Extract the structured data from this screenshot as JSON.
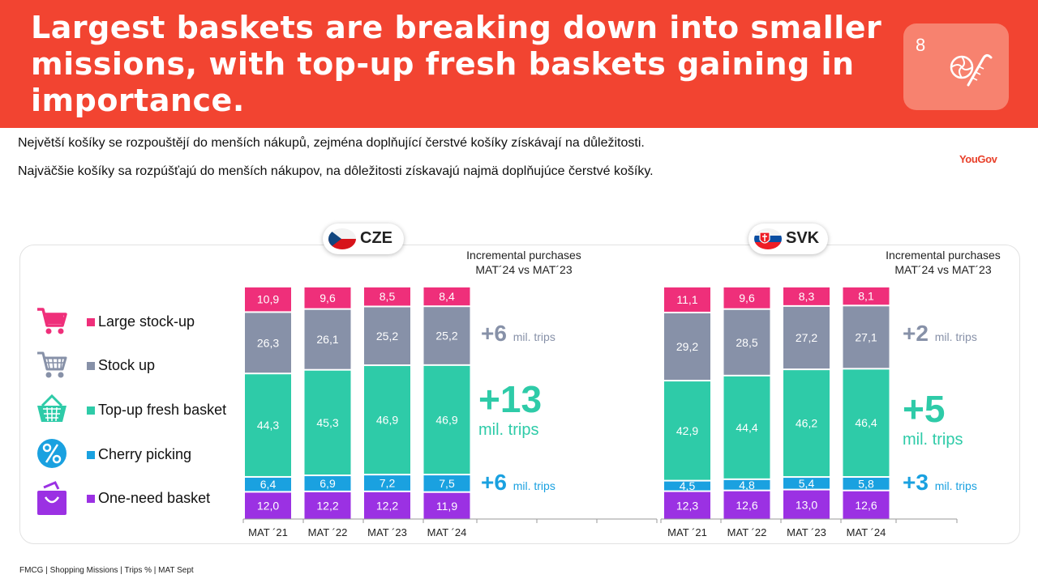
{
  "header": {
    "title": "Largest baskets are breaking down into smaller missions, with top-up fresh baskets gaining in importance.",
    "badge_number": "8",
    "badge_icon": "candy-icon"
  },
  "subtitles": {
    "cz": "Největší košíky se rozpouštějí do menších nákupů, zejména doplňující čerstvé košíky získávají na důležitosti.",
    "sk": "Najväčšie košíky sa rozpúšťajú do menších  nákupov, na dôležitosti získavajú najmä doplňujúce čerstvé košíky."
  },
  "logo": "YouGov",
  "legend": [
    {
      "label": "Large stock-up",
      "color": "#ef2f7a",
      "icon": "shopping-cart-icon"
    },
    {
      "label": "Stock up",
      "color": "#8791a8",
      "icon": "shopping-cart-icon"
    },
    {
      "label": "Top-up fresh basket",
      "color": "#2ecba8",
      "icon": "basket-icon"
    },
    {
      "label": "Cherry picking",
      "color": "#1aa1e0",
      "icon": "percent-icon"
    },
    {
      "label": "One-need basket",
      "color": "#9b31e3",
      "icon": "shopping-bag-icon"
    }
  ],
  "incremental_label": {
    "line1": "Incremental purchases",
    "line2": "MAT´24 vs MAT´23"
  },
  "countries": {
    "cze": {
      "name": "CZE",
      "deltas": {
        "large": {
          "value": "+6",
          "unit": "mil. trips"
        },
        "fresh": {
          "value": "+13",
          "unit": "mil. trips"
        },
        "cherry": {
          "value": "+6",
          "unit": "mil. trips"
        }
      }
    },
    "svk": {
      "name": "SVK",
      "deltas": {
        "large": {
          "value": "+2",
          "unit": "mil. trips"
        },
        "fresh": {
          "value": "+5",
          "unit": "mil. trips"
        },
        "cherry": {
          "value": "+3",
          "unit": "mil. trips"
        }
      }
    }
  },
  "chart_data": [
    {
      "type": "bar",
      "stacked": true,
      "country": "CZE",
      "categories": [
        "MAT ´21",
        "MAT ´22",
        "MAT ´23",
        "MAT ´24"
      ],
      "value_labels": [
        [
          "12,0",
          "12,2",
          "12,2",
          "11,9"
        ],
        [
          "6,4",
          "6,9",
          "7,2",
          "7,5"
        ],
        [
          "44,3",
          "45,3",
          "46,9",
          "46,9"
        ],
        [
          "26,3",
          "26,1",
          "25,2",
          "25,2"
        ],
        [
          "10,9",
          "9,6",
          "8,5",
          "8,4"
        ]
      ],
      "series": [
        {
          "name": "One-need basket",
          "values": [
            12.0,
            12.2,
            12.2,
            11.9
          ]
        },
        {
          "name": "Cherry picking",
          "values": [
            6.4,
            6.9,
            7.2,
            7.5
          ]
        },
        {
          "name": "Top-up fresh basket",
          "values": [
            44.3,
            45.3,
            46.9,
            46.9
          ]
        },
        {
          "name": "Stock up",
          "values": [
            26.3,
            26.1,
            25.2,
            25.2
          ]
        },
        {
          "name": "Large stock-up",
          "values": [
            10.9,
            9.6,
            8.5,
            8.4
          ]
        }
      ],
      "unit": "Trips %"
    },
    {
      "type": "bar",
      "stacked": true,
      "country": "SVK",
      "categories": [
        "MAT ´21",
        "MAT ´22",
        "MAT ´23",
        "MAT ´24"
      ],
      "value_labels": [
        [
          "12,3",
          "12,6",
          "13,0",
          "12,6"
        ],
        [
          "4,5",
          "4,8",
          "5,4",
          "5,8"
        ],
        [
          "42,9",
          "44,4",
          "46,2",
          "46,4"
        ],
        [
          "29,2",
          "28,5",
          "27,2",
          "27,1"
        ],
        [
          "11,1",
          "9,6",
          "8,3",
          "8,1"
        ]
      ],
      "series": [
        {
          "name": "One-need basket",
          "values": [
            12.3,
            12.6,
            13.0,
            12.6
          ]
        },
        {
          "name": "Cherry picking",
          "values": [
            4.5,
            4.8,
            5.4,
            5.8
          ]
        },
        {
          "name": "Top-up fresh basket",
          "values": [
            42.9,
            44.4,
            46.2,
            46.4
          ]
        },
        {
          "name": "Stock up",
          "values": [
            29.2,
            28.5,
            27.2,
            27.1
          ]
        },
        {
          "name": "Large stock-up",
          "values": [
            11.1,
            9.6,
            8.3,
            8.1
          ]
        }
      ],
      "unit": "Trips %"
    }
  ],
  "footer": "FMCG | Shopping Missions | Trips % | MAT Sept"
}
